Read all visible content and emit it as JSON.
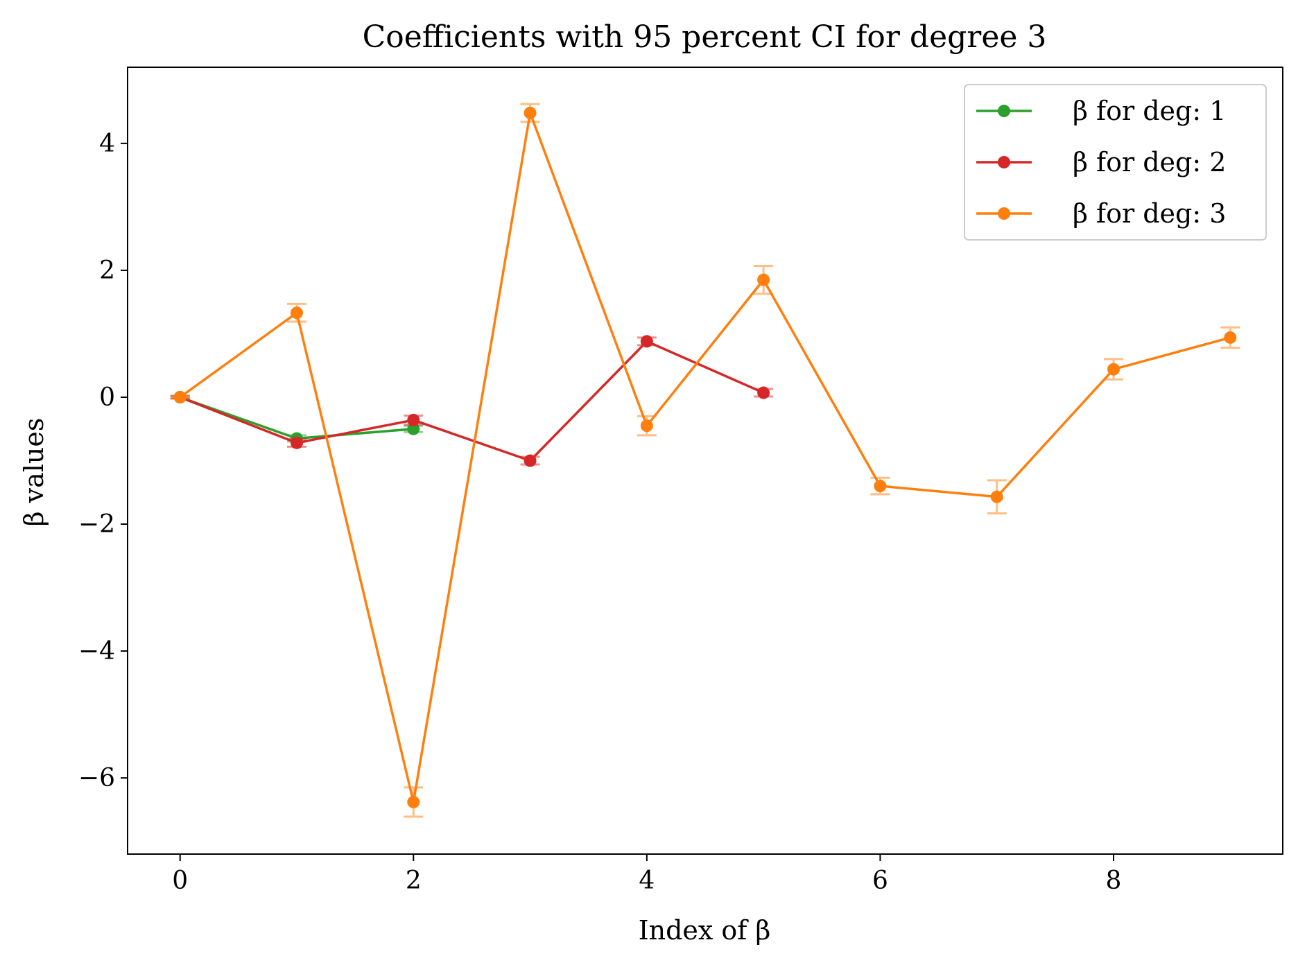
{
  "chart_data": {
    "type": "line",
    "title": "Coefficients with 95 percent CI for degree 3",
    "xlabel": "Index of β",
    "ylabel": "β values",
    "xlim": [
      -0.45,
      9.45
    ],
    "ylim": [
      -7.2,
      5.2
    ],
    "x_ticks": [
      0,
      2,
      4,
      6,
      8
    ],
    "x_tick_labels": [
      "0",
      "2",
      "4",
      "6",
      "8"
    ],
    "y_ticks": [
      -6,
      -4,
      -2,
      0,
      2,
      4
    ],
    "y_tick_labels": [
      "−6",
      "−4",
      "−2",
      "0",
      "2",
      "4"
    ],
    "grid": false,
    "legend_position": "top-right",
    "series": [
      {
        "name": "β for deg: 1",
        "color": "#2ca02c",
        "x": [
          0,
          1,
          2
        ],
        "y": [
          0,
          -0.65,
          -0.5
        ],
        "ci": [
          0.02,
          0.05,
          0.05
        ]
      },
      {
        "name": "β for deg: 2",
        "color": "#d62728",
        "x": [
          0,
          1,
          2,
          3,
          4,
          5
        ],
        "y": [
          0,
          -0.72,
          -0.36,
          -1.0,
          0.88,
          0.07
        ],
        "ci": [
          0.02,
          0.06,
          0.07,
          0.06,
          0.06,
          0.06
        ]
      },
      {
        "name": "β for deg: 3",
        "color": "#ff7f0e",
        "x": [
          0,
          1,
          2,
          3,
          4,
          5,
          6,
          7,
          8,
          9
        ],
        "y": [
          0,
          1.33,
          -6.38,
          4.48,
          -0.45,
          1.85,
          -1.4,
          -1.57,
          0.44,
          0.94
        ],
        "ci": [
          0.02,
          0.14,
          0.23,
          0.14,
          0.15,
          0.22,
          0.13,
          0.26,
          0.16,
          0.16
        ]
      }
    ]
  }
}
